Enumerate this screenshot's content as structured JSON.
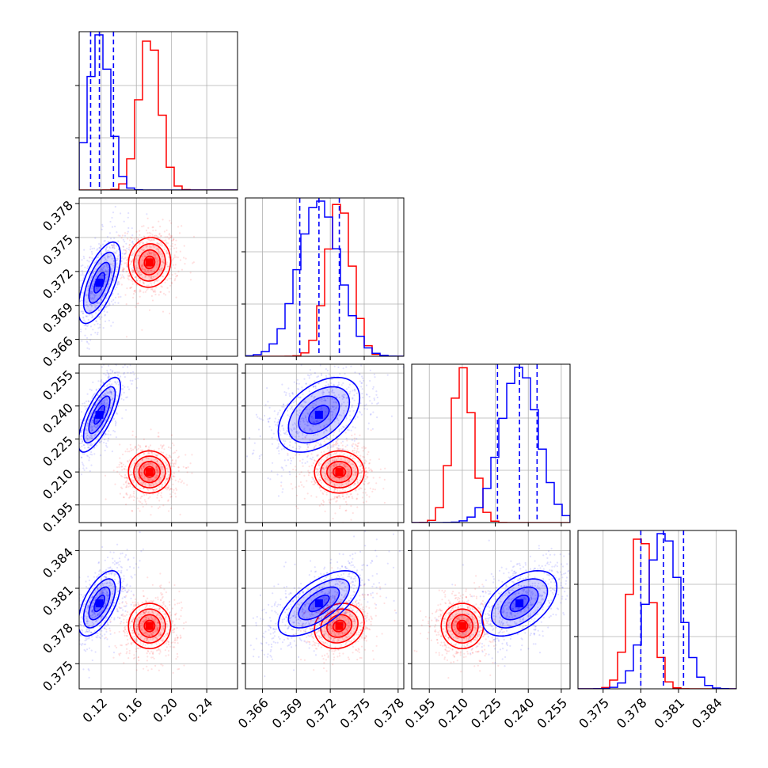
{
  "chart_data": {
    "type": "corner",
    "grid": true,
    "params": [
      {
        "ticks": [
          "0.12",
          "0.16",
          "0.20",
          "0.24"
        ],
        "range": [
          0.095,
          0.275
        ]
      },
      {
        "ticks": [
          "0.366",
          "0.369",
          "0.372",
          "0.375",
          "0.378"
        ],
        "range": [
          0.3645,
          0.3785
        ]
      },
      {
        "ticks": [
          "0.195",
          "0.210",
          "0.225",
          "0.240",
          "0.255"
        ],
        "range": [
          0.187,
          0.259
        ]
      },
      {
        "ticks": [
          "0.375",
          "0.378",
          "0.381",
          "0.384"
        ],
        "range": [
          0.373,
          0.3856
        ]
      }
    ],
    "series": [
      {
        "color": "#ff0000",
        "centers": [
          0.175,
          0.3728,
          0.21,
          0.378
        ],
        "spreads": [
          0.012,
          0.0011,
          0.0048,
          0.0009
        ],
        "correlations": [
          [
            0,
            1,
            0.05
          ],
          [
            0,
            2,
            0.0
          ],
          [
            0,
            3,
            0.0
          ],
          [
            1,
            2,
            0.0
          ],
          [
            1,
            3,
            0.15
          ],
          [
            2,
            3,
            0.0
          ]
        ]
      },
      {
        "color": "#0000ff",
        "centers": [
          0.118,
          0.371,
          0.236,
          0.3798
        ],
        "spreads": [
          0.012,
          0.0018,
          0.0085,
          0.0013
        ],
        "correlations": [
          [
            0,
            1,
            0.65
          ],
          [
            0,
            2,
            0.75
          ],
          [
            0,
            3,
            0.6
          ],
          [
            1,
            2,
            0.45
          ],
          [
            1,
            3,
            0.65
          ],
          [
            2,
            3,
            0.5
          ]
        ],
        "quantiles": [
          [
            0.108,
            0.118,
            0.134
          ],
          [
            0.3693,
            0.371,
            0.3728
          ],
          [
            0.226,
            0.236,
            0.244
          ],
          [
            0.378,
            0.3798,
            0.3814
          ]
        ]
      }
    ]
  }
}
